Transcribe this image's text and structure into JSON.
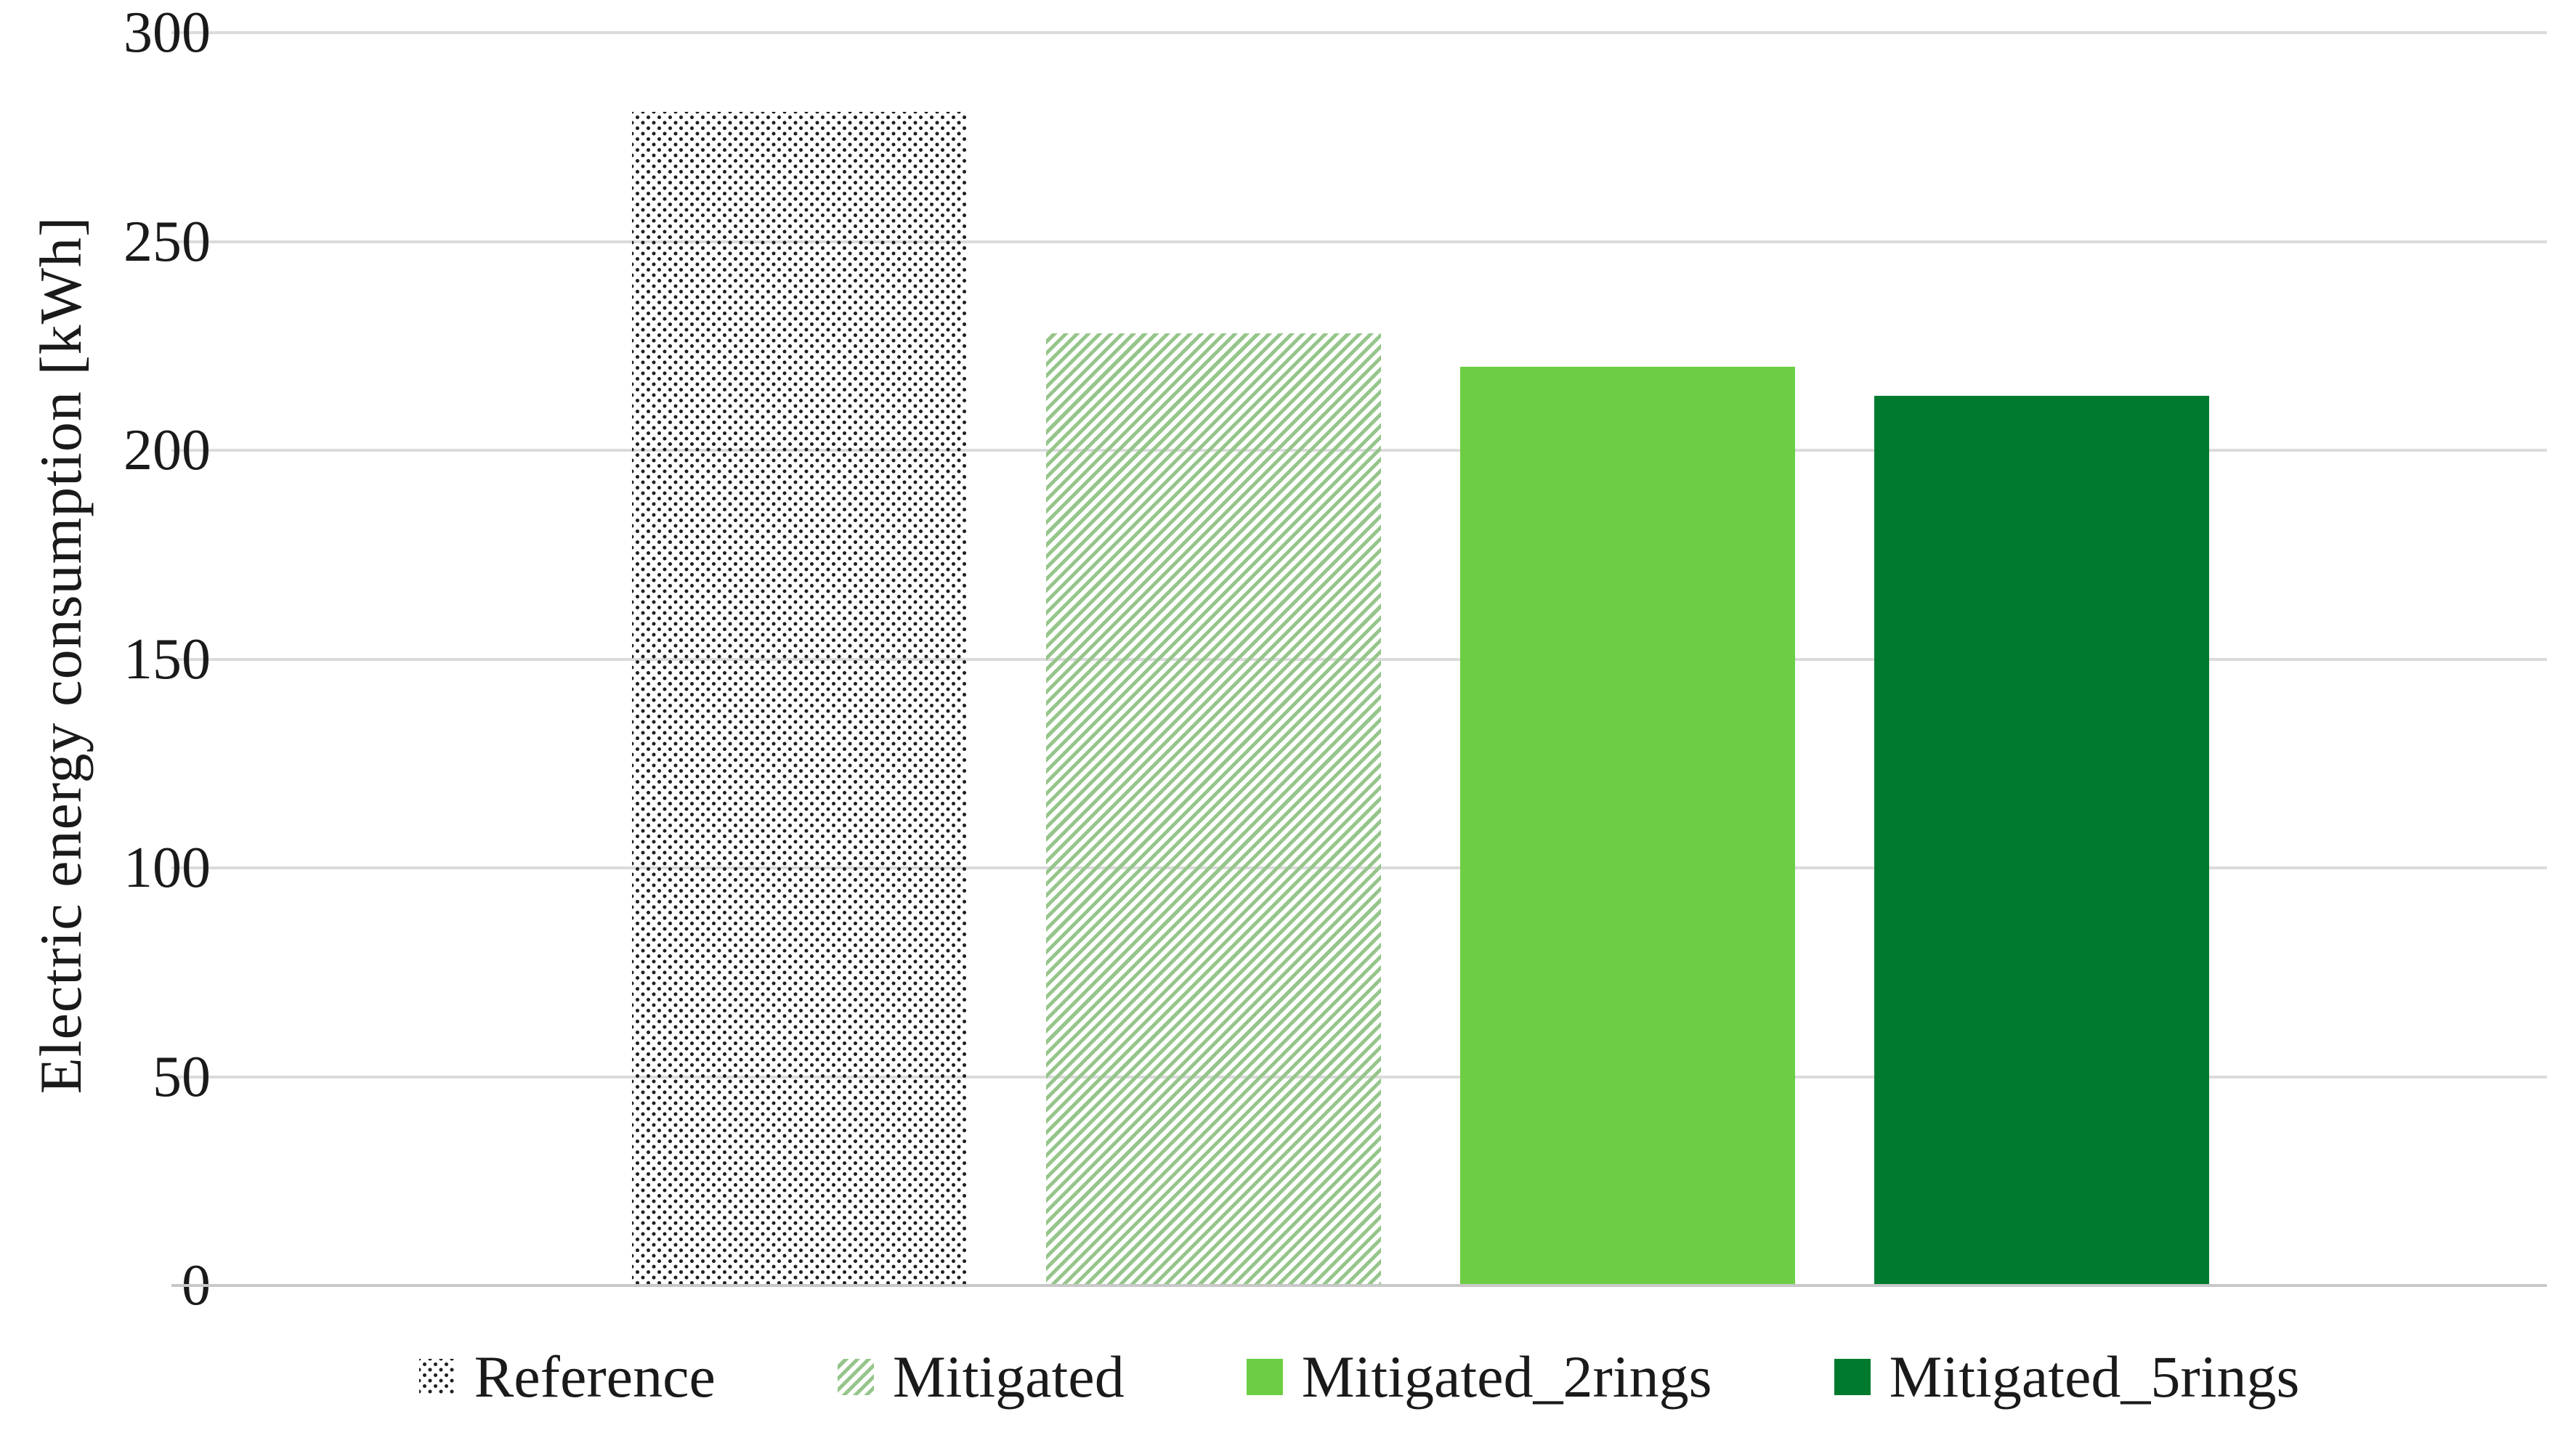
{
  "chart_data": {
    "type": "bar",
    "categories": [
      "Reference",
      "Mitigated",
      "Mitigated_2rings",
      "Mitigated_5rings"
    ],
    "values": [
      281,
      228,
      220,
      213
    ],
    "title": "",
    "xlabel": "",
    "ylabel": "Electric energy consumption [kWh]",
    "ylim": [
      0,
      300
    ],
    "yticks": [
      0,
      50,
      100,
      150,
      200,
      250,
      300
    ],
    "grid": "horizontal",
    "legend_position": "bottom",
    "bar_styles": [
      {
        "label": "Reference",
        "pattern": "dots",
        "color": "#1f1f1f"
      },
      {
        "label": "Mitigated",
        "pattern": "diagonal-stripes",
        "color": "#96C58B"
      },
      {
        "label": "Mitigated_2rings",
        "pattern": "solid",
        "color": "#6CCE42"
      },
      {
        "label": "Mitigated_5rings",
        "pattern": "solid",
        "color": "#007A2E"
      }
    ],
    "colors": {
      "gridline": "#DBDBDB",
      "axis_line": "#C8C8C8",
      "text": "#1A1A1A",
      "background": "#FFFFFF"
    }
  }
}
